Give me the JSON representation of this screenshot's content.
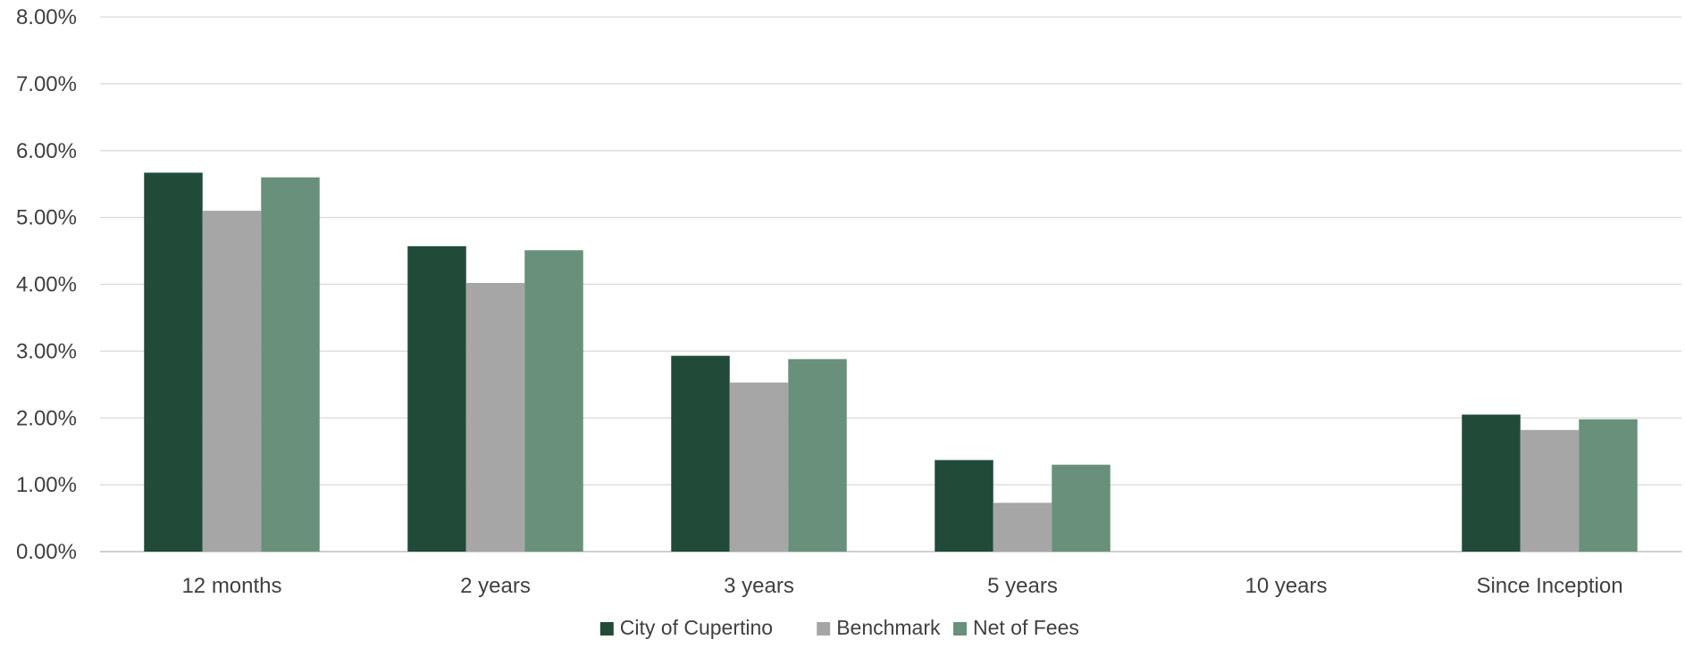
{
  "chart_data": {
    "type": "bar",
    "categories": [
      "12 months",
      "2 years",
      "3 years",
      "5 years",
      "10 years",
      "Since Inception"
    ],
    "series": [
      {
        "name": "City of Cupertino",
        "color": "#214b38",
        "values": [
          5.67,
          4.57,
          2.93,
          1.37,
          null,
          2.05
        ]
      },
      {
        "name": "Benchmark",
        "color": "#a6a6a6",
        "values": [
          5.1,
          4.02,
          2.53,
          0.73,
          null,
          1.82
        ]
      },
      {
        "name": "Net of Fees",
        "color": "#68907a",
        "values": [
          5.6,
          4.51,
          2.88,
          1.3,
          null,
          1.98
        ]
      }
    ],
    "ylim": [
      0,
      8
    ],
    "yticks": [
      0,
      1,
      2,
      3,
      4,
      5,
      6,
      7,
      8
    ],
    "ytick_labels": [
      "0.00%",
      "1.00%",
      "2.00%",
      "3.00%",
      "4.00%",
      "5.00%",
      "6.00%",
      "7.00%",
      "8.00%"
    ],
    "title": "",
    "xlabel": "",
    "ylabel": "",
    "grid": true,
    "legend_position": "bottom"
  }
}
